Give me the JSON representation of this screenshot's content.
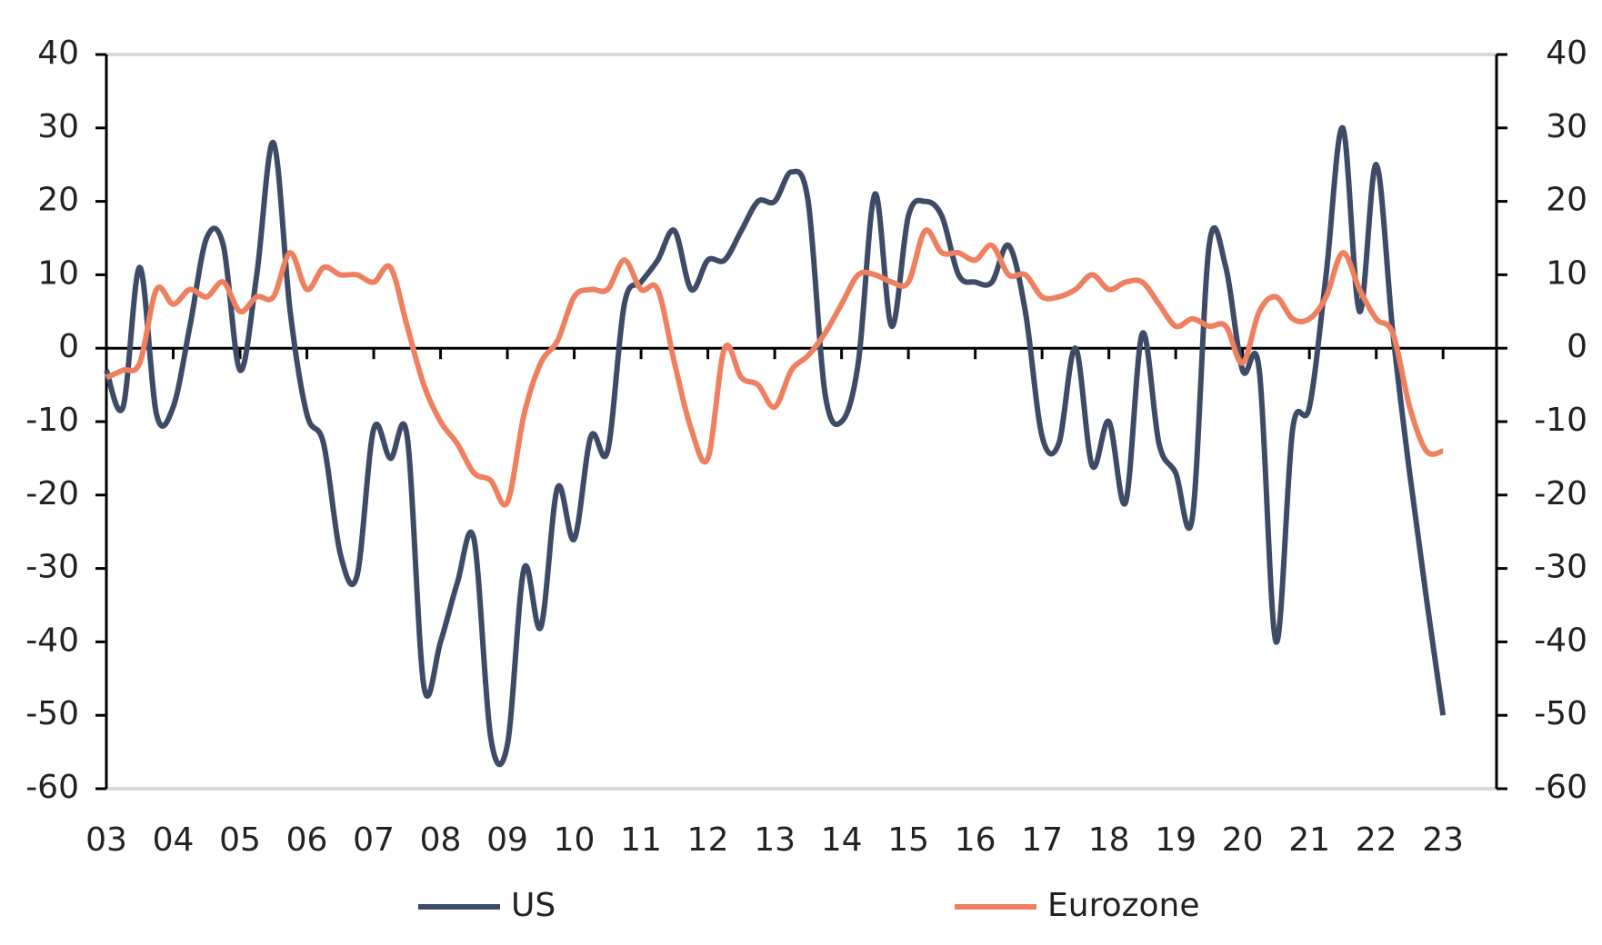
{
  "chart_data": {
    "type": "line",
    "x": [
      3,
      3.25,
      3.5,
      3.75,
      4,
      4.25,
      4.5,
      4.75,
      5,
      5.25,
      5.5,
      5.75,
      6,
      6.25,
      6.5,
      6.75,
      7,
      7.25,
      7.5,
      7.75,
      8,
      8.25,
      8.5,
      8.75,
      9,
      9.25,
      9.5,
      9.75,
      10,
      10.25,
      10.5,
      10.75,
      11,
      11.25,
      11.5,
      11.75,
      12,
      12.25,
      12.5,
      12.75,
      13,
      13.25,
      13.5,
      13.75,
      14,
      14.25,
      14.5,
      14.75,
      15,
      15.25,
      15.5,
      15.75,
      16,
      16.25,
      16.5,
      16.75,
      17,
      17.25,
      17.5,
      17.75,
      18,
      18.25,
      18.5,
      18.75,
      19,
      19.25,
      19.5,
      19.75,
      20,
      20.25,
      20.5,
      20.75,
      21,
      21.25,
      21.5,
      21.75,
      22,
      22.25,
      22.5,
      22.75,
      23
    ],
    "series": [
      {
        "name": "US",
        "color": "#3d4b66",
        "values": [
          -3,
          -8,
          11,
          -9,
          -8,
          3,
          15,
          14,
          -3,
          10,
          28,
          5,
          -9,
          -13,
          -28,
          -31,
          -11,
          -15,
          -12,
          -46,
          -40,
          -32,
          -26,
          -53,
          -54,
          -30,
          -38,
          -19,
          -26,
          -12,
          -14,
          6,
          9,
          12,
          16,
          8,
          12,
          12,
          16,
          20,
          20,
          24,
          20,
          -6,
          -10,
          -2,
          21,
          3,
          18,
          20,
          18,
          10,
          9,
          9,
          14,
          5,
          -12,
          -13,
          0,
          -16,
          -10,
          -21,
          2,
          -13,
          -17,
          -23,
          14,
          11,
          -3,
          -3,
          -40,
          -11,
          -8,
          10,
          30,
          5,
          25,
          2,
          -17,
          -34,
          -50
        ]
      },
      {
        "name": "Eurozone",
        "color": "#ee8060",
        "values": [
          -4,
          -3,
          -2,
          8,
          6,
          8,
          7,
          9,
          5,
          7,
          7,
          13,
          8,
          11,
          10,
          10,
          9,
          11,
          3,
          -5,
          -10,
          -13,
          -17,
          -18,
          -21,
          -9,
          -2,
          1,
          7,
          8,
          8,
          12,
          8,
          8,
          -2,
          -11,
          -15,
          0,
          -4,
          -5,
          -8,
          -3,
          -1,
          2,
          6,
          10,
          10,
          9,
          9,
          16,
          13,
          13,
          12,
          14,
          10,
          10,
          7,
          7,
          8,
          10,
          8,
          9,
          9,
          6,
          3,
          4,
          3,
          3,
          -2,
          5,
          7,
          4,
          4,
          7,
          13,
          8,
          4,
          2,
          -8,
          -14,
          -14
        ]
      }
    ],
    "xlim": [
      3,
      23.8
    ],
    "xticks": [
      {
        "value": 3,
        "label": "03"
      },
      {
        "value": 4,
        "label": "04"
      },
      {
        "value": 5,
        "label": "05"
      },
      {
        "value": 6,
        "label": "06"
      },
      {
        "value": 7,
        "label": "07"
      },
      {
        "value": 8,
        "label": "08"
      },
      {
        "value": 9,
        "label": "09"
      },
      10,
      11,
      12,
      13,
      14,
      15,
      16,
      17,
      18,
      19,
      20,
      21,
      22,
      23
    ],
    "ylim": [
      -60,
      40
    ],
    "yticks": [
      -60,
      -50,
      -40,
      -30,
      -20,
      -10,
      0,
      10,
      20,
      30,
      40
    ],
    "y2lim": [
      -60,
      40
    ],
    "y2ticks": [
      -60,
      -50,
      -40,
      -30,
      -20,
      -10,
      0,
      10,
      20,
      30,
      40
    ],
    "legend": "bottom"
  }
}
